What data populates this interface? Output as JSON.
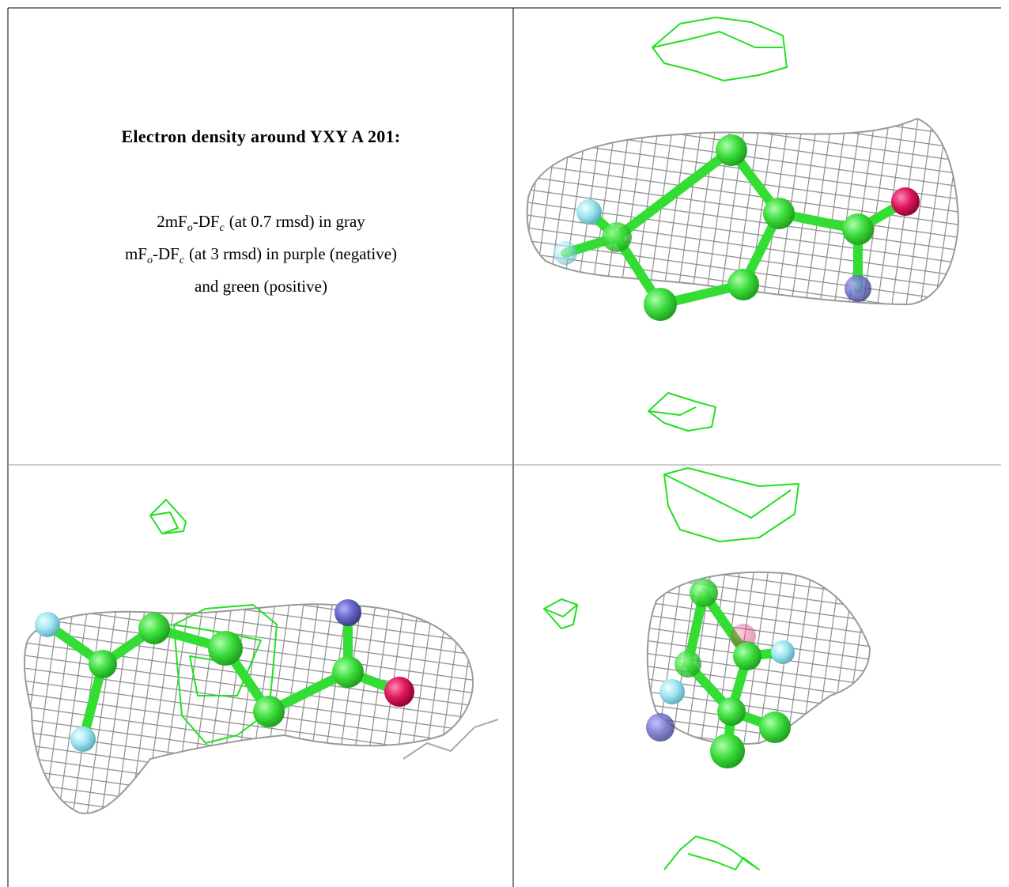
{
  "caption": {
    "title": "Electron density around YXY A 201:",
    "lines": [
      {
        "parts": [
          "2mF",
          "o",
          "-DF",
          "c",
          "(at 0.7 rmsd) in gray"
        ]
      },
      {
        "parts": [
          "mF",
          "o",
          "-DF",
          "c",
          "(at 3 rmsd) in purple (negative)"
        ]
      },
      {
        "parts": [
          "and green (positive)"
        ]
      }
    ]
  }
}
